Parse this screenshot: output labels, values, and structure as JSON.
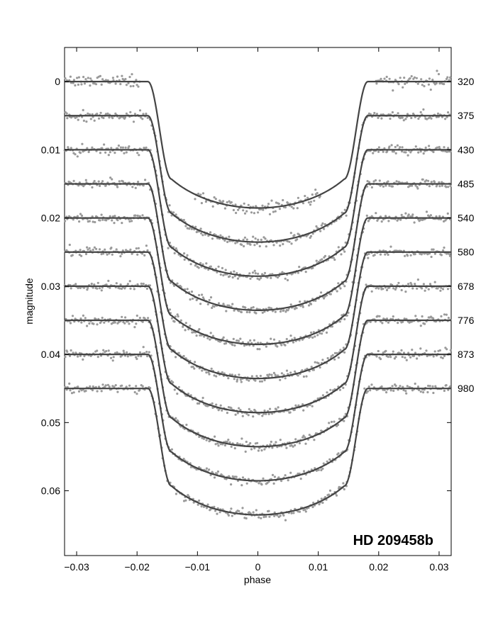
{
  "chart_data": {
    "type": "scatter",
    "title": "",
    "xlabel": "phase",
    "ylabel": "magnitude",
    "annotation": "HD 209458b",
    "xlim": [
      -0.032,
      0.032
    ],
    "ylim": [
      0.0695,
      -0.005
    ],
    "y_inverted": true,
    "grid": false,
    "x_ticks": [
      -0.03,
      -0.02,
      -0.01,
      0,
      0.01,
      0.02,
      0.03
    ],
    "x_tick_labels": [
      "−0.03",
      "−0.02",
      "−0.01",
      "0",
      "0.01",
      "0.02",
      "0.03"
    ],
    "y_ticks": [
      0,
      0.01,
      0.02,
      0.03,
      0.04,
      0.05,
      0.06
    ],
    "y_tick_labels": [
      "0",
      "0.01",
      "0.02",
      "0.03",
      "0.04",
      "0.05",
      "0.06"
    ],
    "colors": {
      "points": "#9a9a9a",
      "model": "#444444",
      "axis": "#000000"
    },
    "transit_model": {
      "depth": 0.0172,
      "ingress_start": 0.0182,
      "full_transit": 0.0143,
      "limb_darkening": 0.6
    },
    "series": [
      {
        "label": "320",
        "baseline": 0.0
      },
      {
        "label": "375",
        "baseline": 0.005
      },
      {
        "label": "430",
        "baseline": 0.01
      },
      {
        "label": "485",
        "baseline": 0.015
      },
      {
        "label": "540",
        "baseline": 0.02
      },
      {
        "label": "580",
        "baseline": 0.025
      },
      {
        "label": "678",
        "baseline": 0.03
      },
      {
        "label": "776",
        "baseline": 0.035
      },
      {
        "label": "873",
        "baseline": 0.04
      },
      {
        "label": "980",
        "baseline": 0.045
      }
    ]
  }
}
